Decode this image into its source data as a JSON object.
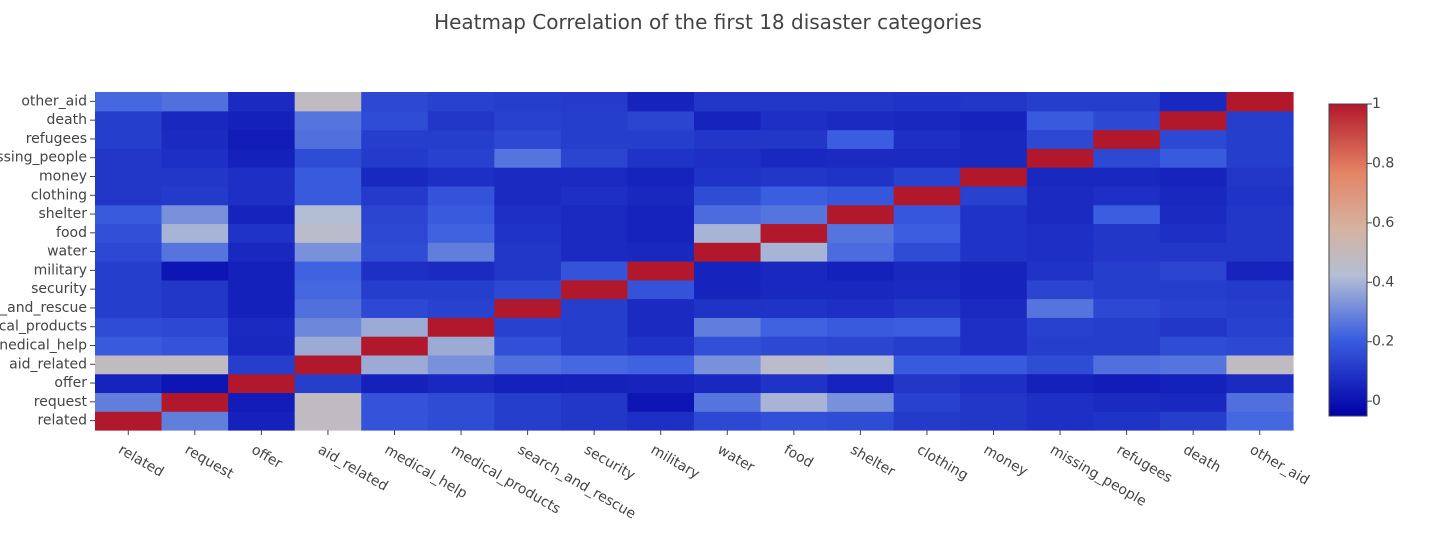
{
  "chart_data": {
    "type": "heatmap",
    "title": "Heatmap Correlation of the first 18 disaster categories",
    "xlabel": "",
    "ylabel": "",
    "categories": [
      "related",
      "request",
      "offer",
      "aid_related",
      "medical_help",
      "medical_products",
      "search_and_rescue",
      "security",
      "military",
      "water",
      "food",
      "shelter",
      "clothing",
      "money",
      "missing_people",
      "refugees",
      "death",
      "other_aid"
    ],
    "y_categories": [
      "related",
      "request",
      "offer",
      "aid_related",
      "medical_help",
      "medical_products",
      "search_and_rescue",
      "security",
      "military",
      "water",
      "food",
      "shelter",
      "clothing",
      "money",
      "missing_people",
      "refugees",
      "death",
      "other_aid"
    ],
    "y_tick_labels": [
      "related",
      "request",
      "offer",
      "aid_related",
      "nedical_help",
      "cal_products",
      "_and_rescue",
      "security",
      "military",
      "water",
      "food",
      "shelter",
      "clothing",
      "money",
      "ssing_people",
      "refugees",
      "death",
      "other_aid"
    ],
    "z": [
      [
        1.0,
        0.28,
        0.04,
        0.48,
        0.18,
        0.16,
        0.12,
        0.1,
        0.08,
        0.15,
        0.17,
        0.16,
        0.11,
        0.1,
        0.08,
        0.09,
        0.12,
        0.23
      ],
      [
        0.28,
        1.0,
        0.03,
        0.48,
        0.18,
        0.16,
        0.12,
        0.1,
        0.01,
        0.26,
        0.4,
        0.32,
        0.13,
        0.1,
        0.08,
        0.07,
        0.06,
        0.25
      ],
      [
        0.05,
        0.01,
        1.0,
        0.12,
        0.04,
        0.06,
        0.04,
        0.04,
        0.05,
        0.06,
        0.09,
        0.05,
        0.1,
        0.08,
        0.04,
        0.03,
        0.04,
        0.07
      ],
      [
        0.48,
        0.48,
        0.12,
        1.0,
        0.38,
        0.32,
        0.25,
        0.23,
        0.22,
        0.32,
        0.45,
        0.42,
        0.2,
        0.2,
        0.16,
        0.25,
        0.26,
        0.48
      ],
      [
        0.2,
        0.18,
        0.06,
        0.38,
        1.0,
        0.38,
        0.17,
        0.12,
        0.09,
        0.17,
        0.15,
        0.14,
        0.12,
        0.08,
        0.12,
        0.12,
        0.16,
        0.15
      ],
      [
        0.16,
        0.15,
        0.07,
        0.3,
        0.38,
        1.0,
        0.13,
        0.12,
        0.07,
        0.28,
        0.22,
        0.2,
        0.21,
        0.08,
        0.13,
        0.12,
        0.1,
        0.13
      ],
      [
        0.12,
        0.1,
        0.04,
        0.25,
        0.15,
        0.13,
        1.0,
        0.12,
        0.07,
        0.09,
        0.09,
        0.08,
        0.1,
        0.07,
        0.26,
        0.15,
        0.13,
        0.12
      ],
      [
        0.12,
        0.1,
        0.04,
        0.23,
        0.12,
        0.12,
        0.15,
        1.0,
        0.18,
        0.05,
        0.06,
        0.06,
        0.07,
        0.05,
        0.14,
        0.12,
        0.12,
        0.11
      ],
      [
        0.12,
        0.01,
        0.04,
        0.22,
        0.08,
        0.07,
        0.1,
        0.18,
        1.0,
        0.05,
        0.06,
        0.04,
        0.06,
        0.05,
        0.09,
        0.12,
        0.14,
        0.05
      ],
      [
        0.15,
        0.26,
        0.06,
        0.32,
        0.16,
        0.28,
        0.1,
        0.07,
        0.06,
        1.0,
        0.4,
        0.24,
        0.16,
        0.09,
        0.08,
        0.1,
        0.1,
        0.1
      ],
      [
        0.17,
        0.4,
        0.09,
        0.45,
        0.15,
        0.22,
        0.09,
        0.07,
        0.05,
        0.4,
        1.0,
        0.26,
        0.21,
        0.09,
        0.08,
        0.1,
        0.08,
        0.1
      ],
      [
        0.2,
        0.32,
        0.05,
        0.42,
        0.14,
        0.2,
        0.08,
        0.07,
        0.05,
        0.24,
        0.26,
        1.0,
        0.19,
        0.09,
        0.07,
        0.21,
        0.07,
        0.1
      ],
      [
        0.1,
        0.11,
        0.08,
        0.2,
        0.11,
        0.18,
        0.07,
        0.08,
        0.06,
        0.16,
        0.21,
        0.19,
        1.0,
        0.13,
        0.07,
        0.08,
        0.06,
        0.09
      ],
      [
        0.1,
        0.1,
        0.08,
        0.2,
        0.06,
        0.08,
        0.07,
        0.07,
        0.05,
        0.09,
        0.1,
        0.09,
        0.13,
        1.0,
        0.06,
        0.06,
        0.05,
        0.1
      ],
      [
        0.1,
        0.08,
        0.04,
        0.16,
        0.11,
        0.13,
        0.26,
        0.14,
        0.09,
        0.08,
        0.06,
        0.07,
        0.07,
        0.06,
        1.0,
        0.15,
        0.2,
        0.12
      ],
      [
        0.12,
        0.07,
        0.03,
        0.25,
        0.12,
        0.12,
        0.15,
        0.12,
        0.12,
        0.1,
        0.1,
        0.21,
        0.08,
        0.06,
        0.15,
        1.0,
        0.15,
        0.12
      ],
      [
        0.12,
        0.06,
        0.04,
        0.26,
        0.16,
        0.1,
        0.13,
        0.12,
        0.14,
        0.05,
        0.08,
        0.07,
        0.06,
        0.05,
        0.2,
        0.15,
        1.0,
        0.12
      ],
      [
        0.23,
        0.25,
        0.07,
        0.48,
        0.15,
        0.13,
        0.12,
        0.11,
        0.05,
        0.1,
        0.1,
        0.1,
        0.09,
        0.1,
        0.12,
        0.12,
        0.06,
        1.0
      ]
    ],
    "zlim": [
      -0.05,
      1.0
    ],
    "colorbar_ticks": [
      {
        "value": 1,
        "label": "1"
      },
      {
        "value": 0.8,
        "label": "0.8"
      },
      {
        "value": 0.6,
        "label": "0.6"
      },
      {
        "value": 0.4,
        "label": "0.4"
      },
      {
        "value": 0.2,
        "label": "0.2"
      },
      {
        "value": 0,
        "label": "0"
      }
    ],
    "colorscale": [
      [
        0.0,
        "#0000a8"
      ],
      [
        0.25,
        "#3b5fe0"
      ],
      [
        0.45,
        "#b4bed4"
      ],
      [
        0.6,
        "#d5b3a1"
      ],
      [
        0.78,
        "#e58465"
      ],
      [
        1.0,
        "#b2182b"
      ]
    ],
    "grid": false,
    "legend": "colorbar-right"
  }
}
